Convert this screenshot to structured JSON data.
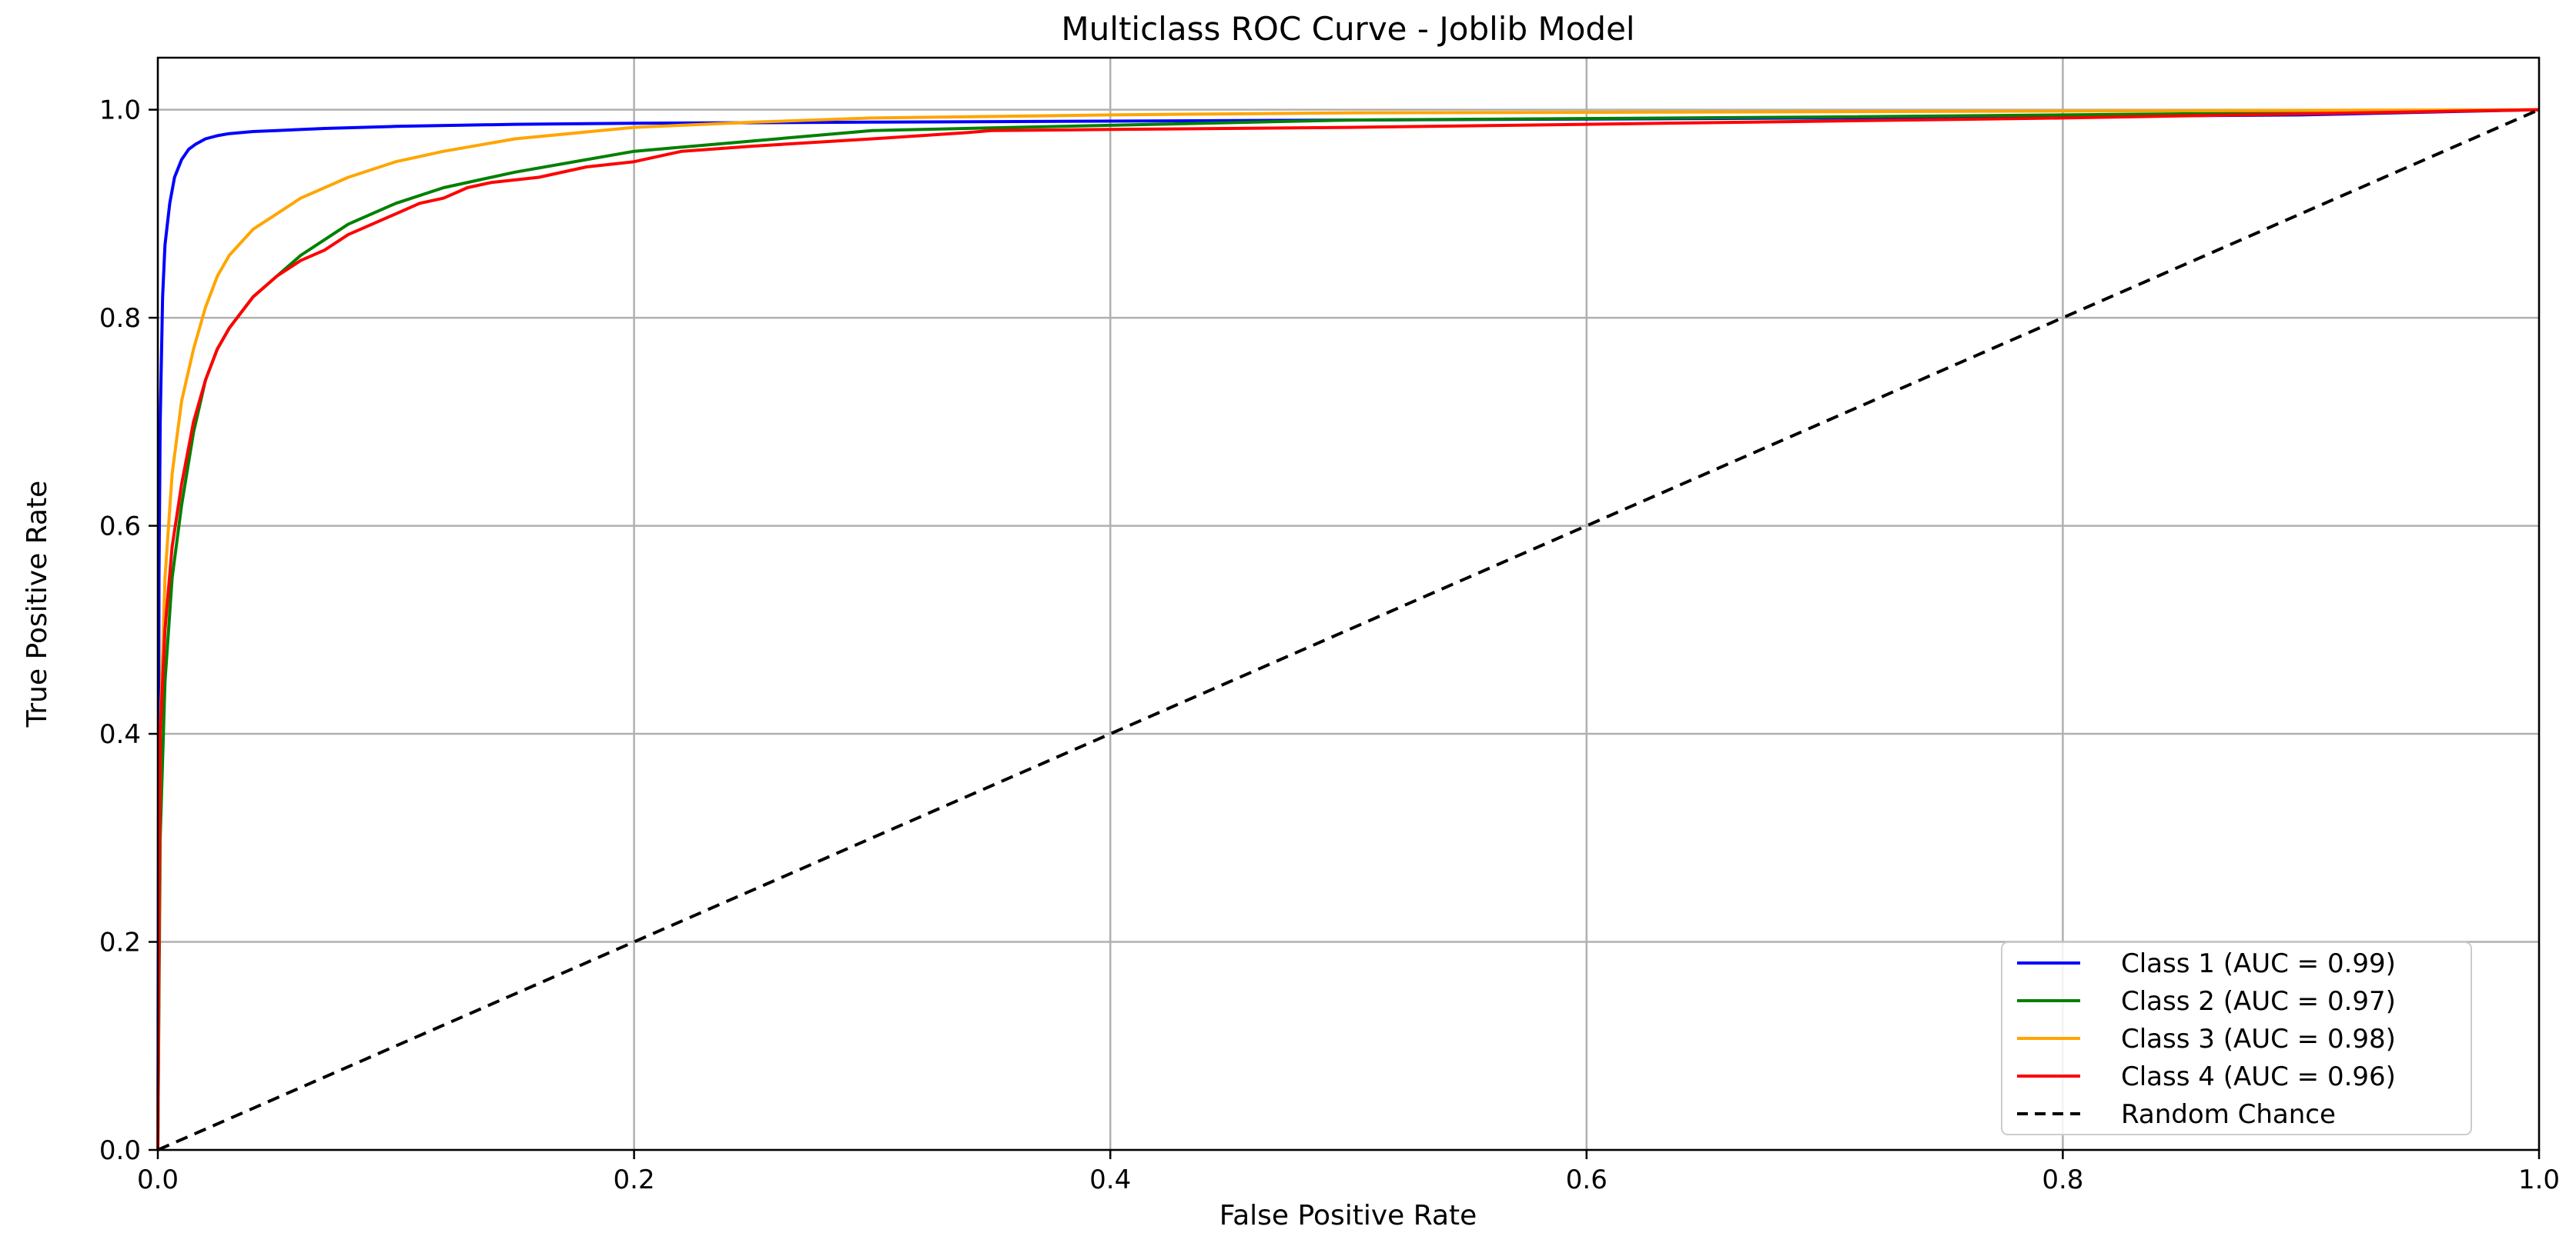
{
  "chart_data": {
    "type": "line",
    "title": "Multiclass ROC Curve - Joblib Model",
    "xlabel": "False Positive Rate",
    "ylabel": "True Positive Rate",
    "xlim": [
      0.0,
      1.0
    ],
    "ylim": [
      0.0,
      1.05
    ],
    "x_ticks": [
      "0.0",
      "0.2",
      "0.4",
      "0.6",
      "0.8",
      "1.0"
    ],
    "y_ticks": [
      "0.0",
      "0.2",
      "0.4",
      "0.6",
      "0.8",
      "1.0"
    ],
    "grid": true,
    "legend_position": "bottom-right",
    "series": [
      {
        "name": "Class 1 (AUC = 0.99)",
        "color": "#0000ff",
        "style": "solid",
        "x": [
          0.0,
          0.0005,
          0.001,
          0.002,
          0.003,
          0.005,
          0.007,
          0.01,
          0.013,
          0.016,
          0.02,
          0.025,
          0.03,
          0.04,
          0.05,
          0.07,
          0.1,
          0.15,
          0.2,
          0.3,
          0.5,
          0.7,
          0.9,
          1.0
        ],
        "y": [
          0.0,
          0.55,
          0.7,
          0.82,
          0.87,
          0.91,
          0.935,
          0.952,
          0.962,
          0.967,
          0.972,
          0.975,
          0.977,
          0.979,
          0.98,
          0.982,
          0.984,
          0.986,
          0.987,
          0.988,
          0.99,
          0.992,
          0.995,
          1.0
        ]
      },
      {
        "name": "Class 2 (AUC = 0.97)",
        "color": "#008000",
        "style": "solid",
        "x": [
          0.0,
          0.001,
          0.003,
          0.006,
          0.01,
          0.015,
          0.02,
          0.025,
          0.03,
          0.04,
          0.05,
          0.06,
          0.07,
          0.08,
          0.1,
          0.12,
          0.15,
          0.2,
          0.25,
          0.3,
          0.4,
          0.5,
          0.7,
          0.9,
          1.0
        ],
        "y": [
          0.0,
          0.3,
          0.45,
          0.55,
          0.62,
          0.69,
          0.74,
          0.77,
          0.79,
          0.82,
          0.84,
          0.86,
          0.875,
          0.89,
          0.91,
          0.925,
          0.94,
          0.96,
          0.97,
          0.98,
          0.985,
          0.99,
          0.993,
          0.997,
          1.0
        ]
      },
      {
        "name": "Class 3 (AUC = 0.98)",
        "color": "#ffa500",
        "style": "solid",
        "x": [
          0.0,
          0.001,
          0.003,
          0.006,
          0.01,
          0.015,
          0.02,
          0.025,
          0.03,
          0.04,
          0.05,
          0.06,
          0.08,
          0.1,
          0.12,
          0.15,
          0.2,
          0.25,
          0.3,
          0.4,
          0.5,
          0.7,
          1.0
        ],
        "y": [
          0.0,
          0.4,
          0.55,
          0.65,
          0.72,
          0.77,
          0.81,
          0.84,
          0.86,
          0.885,
          0.9,
          0.915,
          0.935,
          0.95,
          0.96,
          0.972,
          0.983,
          0.988,
          0.992,
          0.995,
          0.997,
          0.998,
          1.0
        ]
      },
      {
        "name": "Class 4 (AUC = 0.96)",
        "color": "#ff0000",
        "style": "solid",
        "x": [
          0.0,
          0.001,
          0.003,
          0.006,
          0.01,
          0.015,
          0.02,
          0.025,
          0.03,
          0.04,
          0.05,
          0.06,
          0.07,
          0.08,
          0.09,
          0.1,
          0.11,
          0.12,
          0.13,
          0.14,
          0.16,
          0.18,
          0.2,
          0.22,
          0.25,
          0.3,
          0.34,
          0.35,
          0.4,
          0.5,
          0.6,
          0.7,
          0.8,
          0.9,
          1.0
        ],
        "y": [
          0.0,
          0.4,
          0.5,
          0.58,
          0.64,
          0.7,
          0.74,
          0.77,
          0.79,
          0.82,
          0.84,
          0.855,
          0.865,
          0.88,
          0.89,
          0.9,
          0.91,
          0.915,
          0.925,
          0.93,
          0.935,
          0.945,
          0.95,
          0.96,
          0.965,
          0.972,
          0.978,
          0.98,
          0.981,
          0.983,
          0.986,
          0.989,
          0.992,
          0.996,
          1.0
        ]
      },
      {
        "name": "Random Chance",
        "color": "#000000",
        "style": "dashed",
        "x": [
          0.0,
          1.0
        ],
        "y": [
          0.0,
          1.0
        ]
      }
    ]
  }
}
